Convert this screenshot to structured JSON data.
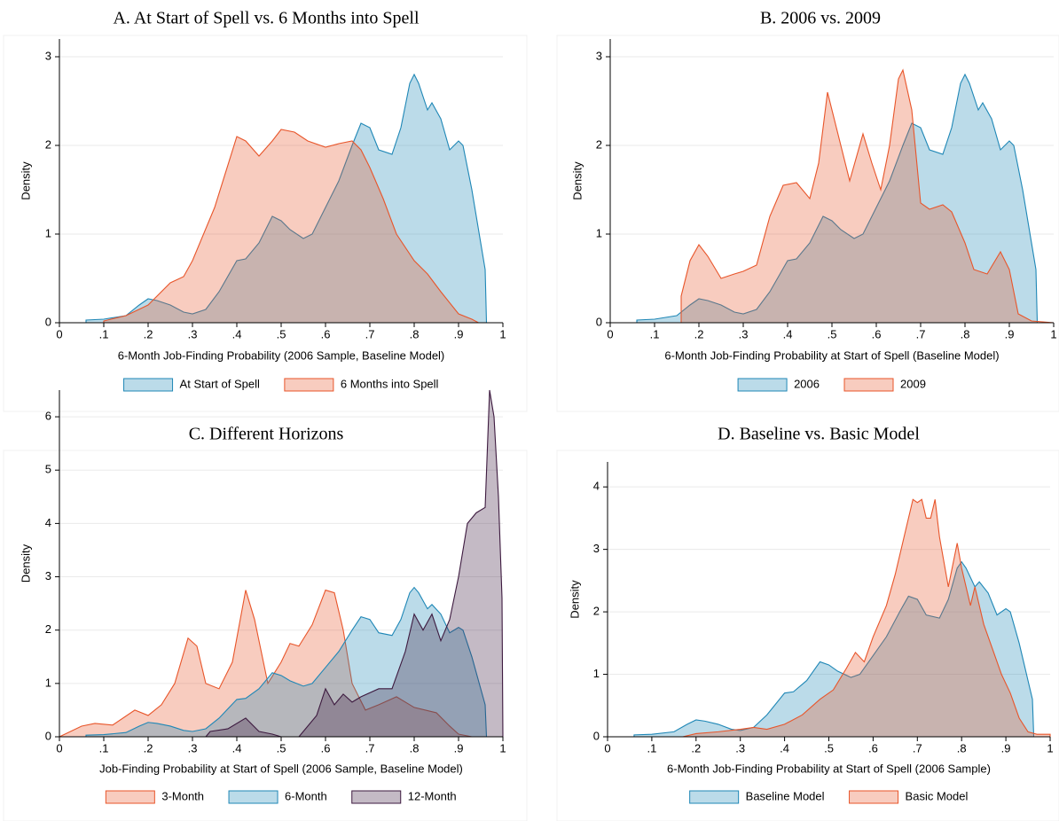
{
  "chart_data": [
    {
      "type": "area",
      "title": "A. At Start of Spell vs. 6 Months into Spell",
      "xlabel": "6-Month Job-Finding Probability (2006 Sample, Baseline Model)",
      "ylabel": "Density",
      "xlim": [
        0,
        1
      ],
      "ylim": [
        0,
        3.2
      ],
      "grid": true,
      "legend": "bottom",
      "xticks": [
        0,
        {
          "value": 0.1,
          "label": ".1"
        },
        {
          "value": 0.2,
          "label": ".2"
        },
        {
          "value": 0.3,
          "label": ".3"
        },
        {
          "value": 0.4,
          "label": ".4"
        },
        {
          "value": 0.5,
          "label": ".5"
        },
        {
          "value": 0.6,
          "label": ".6"
        },
        {
          "value": 0.7,
          "label": ".7"
        },
        {
          "value": 0.8,
          "label": ".8"
        },
        {
          "value": 0.9,
          "label": ".9"
        },
        1
      ],
      "yticks": [
        0,
        1,
        2,
        3
      ],
      "series": [
        {
          "name": "At Start of Spell",
          "color": "#1f87b6",
          "x": [
            0.06,
            0.1,
            0.15,
            0.18,
            0.2,
            0.22,
            0.25,
            0.28,
            0.3,
            0.33,
            0.36,
            0.4,
            0.42,
            0.45,
            0.48,
            0.5,
            0.52,
            0.55,
            0.57,
            0.6,
            0.63,
            0.66,
            0.68,
            0.7,
            0.72,
            0.75,
            0.77,
            0.79,
            0.8,
            0.81,
            0.83,
            0.84,
            0.86,
            0.88,
            0.9,
            0.91,
            0.93,
            0.95,
            0.96,
            0.963
          ],
          "values": [
            0.03,
            0.04,
            0.08,
            0.2,
            0.27,
            0.25,
            0.2,
            0.12,
            0.1,
            0.15,
            0.35,
            0.7,
            0.72,
            0.9,
            1.2,
            1.15,
            1.05,
            0.95,
            1.0,
            1.3,
            1.6,
            2.0,
            2.25,
            2.2,
            1.95,
            1.9,
            2.2,
            2.7,
            2.8,
            2.7,
            2.4,
            2.48,
            2.3,
            1.95,
            2.05,
            2.0,
            1.5,
            0.9,
            0.6,
            0
          ]
        },
        {
          "name": "6 Months into Spell",
          "color": "#e8552a",
          "x": [
            0.1,
            0.15,
            0.2,
            0.25,
            0.28,
            0.3,
            0.35,
            0.4,
            0.42,
            0.45,
            0.48,
            0.5,
            0.53,
            0.56,
            0.6,
            0.63,
            0.66,
            0.68,
            0.7,
            0.73,
            0.76,
            0.8,
            0.83,
            0.86,
            0.9,
            0.93,
            0.945
          ],
          "values": [
            0.02,
            0.08,
            0.2,
            0.45,
            0.52,
            0.7,
            1.3,
            2.1,
            2.05,
            1.88,
            2.05,
            2.18,
            2.15,
            2.05,
            1.98,
            2.02,
            2.05,
            1.95,
            1.75,
            1.4,
            1.0,
            0.7,
            0.55,
            0.35,
            0.1,
            0.04,
            0
          ]
        }
      ]
    },
    {
      "type": "area",
      "title": "B. 2006 vs. 2009",
      "xlabel": "6-Month Job-Finding Probability at Start of Spell (Baseline Model)",
      "ylabel": "Density",
      "xlim": [
        0,
        1
      ],
      "ylim": [
        0,
        3.2
      ],
      "grid": true,
      "legend": "bottom",
      "xticks": [
        0,
        {
          "value": 0.1,
          "label": ".1"
        },
        {
          "value": 0.2,
          "label": ".2"
        },
        {
          "value": 0.3,
          "label": ".3"
        },
        {
          "value": 0.4,
          "label": ".4"
        },
        {
          "value": 0.5,
          "label": ".5"
        },
        {
          "value": 0.6,
          "label": ".6"
        },
        {
          "value": 0.7,
          "label": ".7"
        },
        {
          "value": 0.8,
          "label": ".8"
        },
        {
          "value": 0.9,
          "label": ".9"
        },
        1
      ],
      "yticks": [
        0,
        1,
        2,
        3
      ],
      "series": [
        {
          "name": "2006",
          "color": "#1f87b6",
          "x": [
            0.06,
            0.1,
            0.15,
            0.18,
            0.2,
            0.22,
            0.25,
            0.28,
            0.3,
            0.33,
            0.36,
            0.4,
            0.42,
            0.45,
            0.48,
            0.5,
            0.52,
            0.55,
            0.57,
            0.6,
            0.63,
            0.66,
            0.68,
            0.7,
            0.72,
            0.75,
            0.77,
            0.79,
            0.8,
            0.81,
            0.83,
            0.84,
            0.86,
            0.88,
            0.9,
            0.91,
            0.93,
            0.95,
            0.96,
            0.963
          ],
          "values": [
            0.03,
            0.04,
            0.08,
            0.2,
            0.27,
            0.25,
            0.2,
            0.12,
            0.1,
            0.15,
            0.35,
            0.7,
            0.72,
            0.9,
            1.2,
            1.15,
            1.05,
            0.95,
            1.0,
            1.3,
            1.6,
            2.0,
            2.25,
            2.2,
            1.95,
            1.9,
            2.2,
            2.7,
            2.8,
            2.7,
            2.4,
            2.48,
            2.3,
            1.95,
            2.05,
            2.0,
            1.5,
            0.9,
            0.6,
            0
          ]
        },
        {
          "name": "2009",
          "color": "#e8552a",
          "x": [
            0.16,
            0.18,
            0.2,
            0.22,
            0.25,
            0.28,
            0.3,
            0.33,
            0.36,
            0.39,
            0.42,
            0.45,
            0.47,
            0.49,
            0.51,
            0.54,
            0.57,
            0.59,
            0.61,
            0.63,
            0.65,
            0.66,
            0.68,
            0.7,
            0.72,
            0.75,
            0.77,
            0.8,
            0.82,
            0.85,
            0.88,
            0.9,
            0.92,
            0.95,
            1.0
          ],
          "values": [
            0.3,
            0.7,
            0.88,
            0.75,
            0.5,
            0.55,
            0.58,
            0.65,
            1.2,
            1.55,
            1.58,
            1.4,
            1.8,
            2.6,
            2.2,
            1.6,
            2.13,
            1.8,
            1.5,
            2.0,
            2.75,
            2.85,
            2.4,
            1.35,
            1.28,
            1.33,
            1.25,
            0.9,
            0.6,
            0.55,
            0.8,
            0.6,
            0.1,
            0.02,
            0
          ]
        }
      ]
    },
    {
      "type": "area",
      "title": "C. Different Horizons",
      "xlabel": "Job-Finding Probability at Start of Spell (2006 Sample, Baseline Model)",
      "ylabel": "Density",
      "xlim": [
        0,
        1
      ],
      "ylim": [
        0,
        6.5
      ],
      "grid": true,
      "legend": "bottom",
      "xticks": [
        0,
        {
          "value": 0.1,
          "label": ".1"
        },
        {
          "value": 0.2,
          "label": ".2"
        },
        {
          "value": 0.3,
          "label": ".3"
        },
        {
          "value": 0.4,
          "label": ".4"
        },
        {
          "value": 0.5,
          "label": ".5"
        },
        {
          "value": 0.6,
          "label": ".6"
        },
        {
          "value": 0.7,
          "label": ".7"
        },
        {
          "value": 0.8,
          "label": ".8"
        },
        {
          "value": 0.9,
          "label": ".9"
        },
        1
      ],
      "yticks": [
        0,
        1,
        2,
        3,
        4,
        5,
        6
      ],
      "series": [
        {
          "name": "3-Month",
          "color": "#e8552a",
          "x": [
            0,
            0.05,
            0.08,
            0.12,
            0.17,
            0.2,
            0.23,
            0.26,
            0.29,
            0.31,
            0.33,
            0.36,
            0.39,
            0.42,
            0.44,
            0.47,
            0.5,
            0.52,
            0.54,
            0.57,
            0.6,
            0.62,
            0.64,
            0.66,
            0.69,
            0.72,
            0.76,
            0.8,
            0.85,
            0.88,
            0.9,
            0.93
          ],
          "values": [
            0,
            0.2,
            0.25,
            0.22,
            0.5,
            0.4,
            0.6,
            1.0,
            1.85,
            1.7,
            1.0,
            0.9,
            1.4,
            2.75,
            2.2,
            1.0,
            1.4,
            1.75,
            1.7,
            2.1,
            2.75,
            2.7,
            2.0,
            1.0,
            0.5,
            0.6,
            0.75,
            0.55,
            0.45,
            0.2,
            0.05,
            0
          ]
        },
        {
          "name": "6-Month",
          "color": "#1f87b6",
          "x": [
            0.06,
            0.1,
            0.15,
            0.18,
            0.2,
            0.22,
            0.25,
            0.28,
            0.3,
            0.33,
            0.36,
            0.4,
            0.42,
            0.45,
            0.48,
            0.5,
            0.52,
            0.55,
            0.57,
            0.6,
            0.63,
            0.66,
            0.68,
            0.7,
            0.72,
            0.75,
            0.77,
            0.79,
            0.8,
            0.81,
            0.83,
            0.84,
            0.86,
            0.88,
            0.9,
            0.91,
            0.93,
            0.95,
            0.96,
            0.963
          ],
          "values": [
            0.03,
            0.04,
            0.08,
            0.2,
            0.27,
            0.25,
            0.2,
            0.12,
            0.1,
            0.15,
            0.35,
            0.7,
            0.72,
            0.9,
            1.2,
            1.15,
            1.05,
            0.95,
            1.0,
            1.3,
            1.6,
            2.0,
            2.25,
            2.2,
            1.95,
            1.9,
            2.2,
            2.7,
            2.8,
            2.7,
            2.4,
            2.48,
            2.3,
            1.95,
            2.05,
            2.0,
            1.5,
            0.9,
            0.6,
            0
          ]
        },
        {
          "name": "12-Month",
          "color": "#3d1a3f",
          "x": [
            0.33,
            0.34,
            0.38,
            0.42,
            0.45,
            0.48,
            0.5,
            0.54,
            0.55,
            0.58,
            0.6,
            0.62,
            0.64,
            0.66,
            0.68,
            0.72,
            0.75,
            0.78,
            0.8,
            0.82,
            0.84,
            0.86,
            0.88,
            0.9,
            0.92,
            0.94,
            0.96,
            0.97,
            0.98,
            0.99,
            0.998,
            1.0
          ],
          "values": [
            0,
            0.1,
            0.15,
            0.35,
            0.1,
            0.05,
            0,
            0,
            0.1,
            0.4,
            0.9,
            0.6,
            0.8,
            0.65,
            0.75,
            0.9,
            0.9,
            1.6,
            2.3,
            2.0,
            2.3,
            1.8,
            2.2,
            3.0,
            4.0,
            4.2,
            4.3,
            6.5,
            6.0,
            4.5,
            2.6,
            0
          ]
        }
      ]
    },
    {
      "type": "area",
      "title": "D. Baseline vs. Basic Model",
      "xlabel": "6-Month Job-Finding Probability at Start of Spell (2006 Sample)",
      "ylabel": "Density",
      "xlim": [
        0,
        1
      ],
      "ylim": [
        0,
        4.4
      ],
      "grid": true,
      "legend": "bottom",
      "xticks": [
        0,
        {
          "value": 0.1,
          "label": ".1"
        },
        {
          "value": 0.2,
          "label": ".2"
        },
        {
          "value": 0.3,
          "label": ".3"
        },
        {
          "value": 0.4,
          "label": ".4"
        },
        {
          "value": 0.5,
          "label": ".5"
        },
        {
          "value": 0.6,
          "label": ".6"
        },
        {
          "value": 0.7,
          "label": ".7"
        },
        {
          "value": 0.8,
          "label": ".8"
        },
        {
          "value": 0.9,
          "label": ".9"
        },
        1
      ],
      "yticks": [
        0,
        1,
        2,
        3,
        4
      ],
      "series": [
        {
          "name": "Baseline Model",
          "color": "#1f87b6",
          "x": [
            0.06,
            0.1,
            0.15,
            0.18,
            0.2,
            0.22,
            0.25,
            0.28,
            0.3,
            0.33,
            0.36,
            0.4,
            0.42,
            0.45,
            0.48,
            0.5,
            0.52,
            0.55,
            0.57,
            0.6,
            0.63,
            0.66,
            0.68,
            0.7,
            0.72,
            0.75,
            0.77,
            0.79,
            0.8,
            0.81,
            0.83,
            0.84,
            0.86,
            0.88,
            0.9,
            0.91,
            0.93,
            0.95,
            0.96,
            0.963
          ],
          "values": [
            0.03,
            0.04,
            0.08,
            0.2,
            0.27,
            0.25,
            0.2,
            0.12,
            0.1,
            0.15,
            0.35,
            0.7,
            0.72,
            0.9,
            1.2,
            1.15,
            1.05,
            0.95,
            1.0,
            1.3,
            1.6,
            2.0,
            2.25,
            2.2,
            1.95,
            1.9,
            2.2,
            2.7,
            2.8,
            2.7,
            2.4,
            2.48,
            2.3,
            1.95,
            2.05,
            2.0,
            1.5,
            0.9,
            0.6,
            0
          ]
        },
        {
          "name": "Basic Model",
          "color": "#e8552a",
          "x": [
            0.17,
            0.2,
            0.25,
            0.3,
            0.33,
            0.36,
            0.4,
            0.44,
            0.48,
            0.51,
            0.54,
            0.56,
            0.58,
            0.6,
            0.63,
            0.65,
            0.67,
            0.69,
            0.7,
            0.71,
            0.72,
            0.73,
            0.74,
            0.75,
            0.77,
            0.79,
            0.8,
            0.82,
            0.83,
            0.85,
            0.87,
            0.89,
            0.91,
            0.93,
            0.95,
            0.97,
            1.0
          ],
          "values": [
            0,
            0.05,
            0.08,
            0.12,
            0.15,
            0.12,
            0.2,
            0.35,
            0.6,
            0.75,
            1.1,
            1.35,
            1.2,
            1.6,
            2.1,
            2.6,
            3.2,
            3.8,
            3.75,
            3.8,
            3.5,
            3.5,
            3.8,
            3.2,
            2.4,
            3.1,
            2.7,
            2.1,
            2.4,
            1.8,
            1.4,
            1.0,
            0.7,
            0.3,
            0.08,
            0.04,
            0.04
          ]
        }
      ]
    }
  ]
}
